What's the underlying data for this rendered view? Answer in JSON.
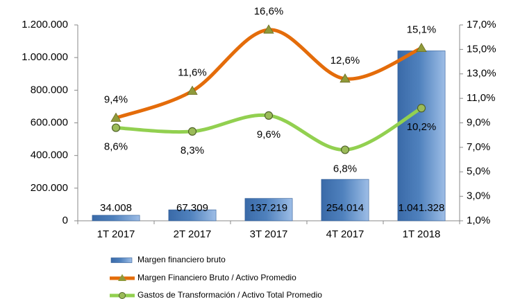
{
  "chart_data": {
    "type": "bar-line",
    "categories": [
      "1T 2017",
      "2T 2017",
      "3T 2017",
      "4T 2017",
      "1T 2018"
    ],
    "series": [
      {
        "name": "Margen financiero bruto",
        "type": "bar",
        "color": "#4f81bd",
        "values": [
          34008,
          67309,
          137219,
          254014,
          1041328
        ],
        "value_labels": [
          "34.008",
          "67.309",
          "137.219",
          "254.014",
          "1.041.328"
        ]
      },
      {
        "name": "Margen Financiero Bruto / Activo Promedio",
        "type": "line",
        "axis": "y2",
        "color": "#e46c0a",
        "marker": "triangle",
        "marker_color": "#8f9a3a",
        "values": [
          9.4,
          11.6,
          16.6,
          12.6,
          15.1
        ],
        "value_labels": [
          "9,4%",
          "11,6%",
          "16,6%",
          "12,6%",
          "15,1%"
        ]
      },
      {
        "name": "Gastos de Transformación / Activo Total Promedio",
        "type": "line",
        "axis": "y2",
        "color": "#92d050",
        "marker": "circle",
        "marker_color": "#9bbb59",
        "values": [
          8.6,
          8.3,
          9.6,
          6.8,
          10.2
        ],
        "value_labels": [
          "8,6%",
          "8,3%",
          "9,6%",
          "6,8%",
          "10,2%"
        ]
      }
    ],
    "ylim": [
      0,
      1200000
    ],
    "yticks": [
      0,
      {
        "value": 200000,
        "label": "200.000"
      },
      {
        "value": 400000,
        "label": "400.000"
      },
      {
        "value": 600000,
        "label": "600.000"
      },
      {
        "value": 800000,
        "label": "800.000"
      },
      {
        "value": 1000000,
        "label": "1.000.000"
      },
      {
        "value": 1200000,
        "label": "1.200.000"
      }
    ],
    "y2lim": [
      1,
      17
    ],
    "y2ticks": [
      {
        "value": 1,
        "label": "1,0%"
      },
      {
        "value": 3,
        "label": "3,0%"
      },
      {
        "value": 5,
        "label": "5,0%"
      },
      {
        "value": 7,
        "label": "7,0%"
      },
      {
        "value": 9,
        "label": "9,0%"
      },
      {
        "value": 11,
        "label": "11,0%"
      },
      {
        "value": 13,
        "label": "13,0%"
      },
      {
        "value": 15,
        "label": "15,0%"
      },
      {
        "value": 17,
        "label": "17,0%"
      }
    ],
    "grid": false
  }
}
